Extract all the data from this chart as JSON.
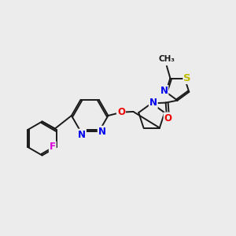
{
  "bg_color": "#ececec",
  "bond_color": "#1a1a1a",
  "atom_colors": {
    "N": "#0000ee",
    "O": "#ee0000",
    "F": "#dd00dd",
    "S": "#bbbb00",
    "C": "#1a1a1a"
  },
  "font_size": 8.5,
  "figsize": [
    3.0,
    3.0
  ],
  "dpi": 100
}
